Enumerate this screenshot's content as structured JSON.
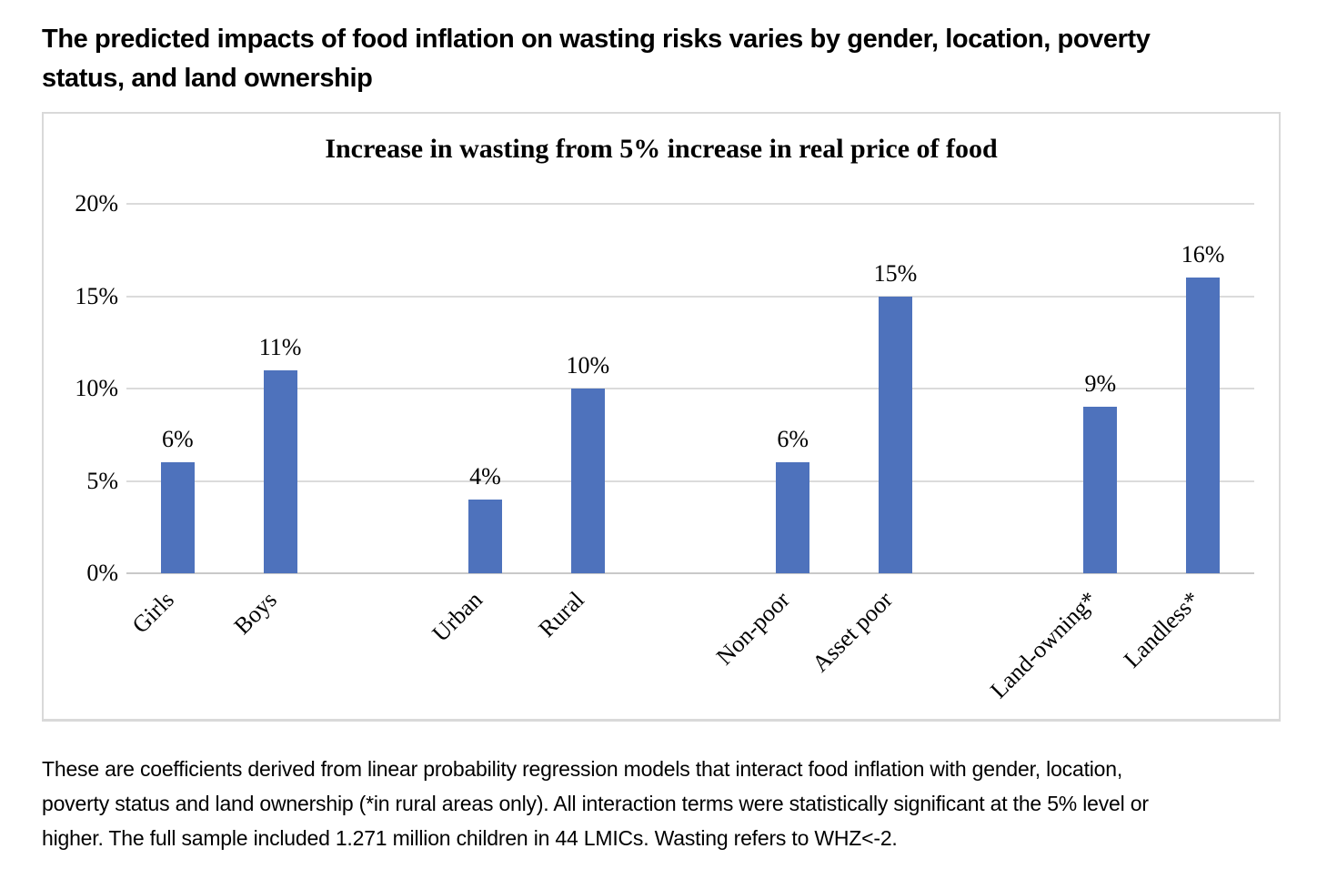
{
  "page": {
    "heading": {
      "line1": "The predicted impacts of food inflation on wasting risks varies by gender, location, poverty",
      "line2": "status, and land ownership"
    },
    "footnote": {
      "line1": "These are coefficients derived from linear probability regression models that interact food inflation with gender, location,",
      "line2": "poverty status and land ownership (*in rural areas only). All interaction terms were statistically significant at the 5% level or",
      "line3": "higher. The full sample included 1.271 million children in 44 LMICs. Wasting refers to WHZ<-2."
    }
  },
  "chart_data": {
    "type": "bar",
    "title": "Increase in wasting from 5% increase in real price of food",
    "categories": [
      "Girls",
      "Boys",
      "Urban",
      "Rural",
      "Non-poor",
      "Asset poor",
      "Land-owning*",
      "Landless*"
    ],
    "values": [
      6,
      11,
      4,
      10,
      6,
      15,
      9,
      16
    ],
    "bar_labels": [
      "6%",
      "11%",
      "4%",
      "10%",
      "6%",
      "15%",
      "9%",
      "16%"
    ],
    "category_groups": [
      [
        "Girls",
        "Boys"
      ],
      [
        "Urban",
        "Rural"
      ],
      [
        "Non-poor",
        "Asset poor"
      ],
      [
        "Land-owning*",
        "Landless*"
      ]
    ],
    "xlabel": "",
    "ylabel": "",
    "y_axis": {
      "min": 0,
      "max": 20,
      "tick_values": [
        20,
        15,
        10,
        5,
        0
      ],
      "tick_labels": [
        "20%",
        "15%",
        "10%",
        "5%",
        "0%"
      ]
    },
    "grid": "horizontal",
    "legend": "none",
    "x_label_rotation_deg": 45,
    "colors": {
      "bar": "#4E72BC",
      "gridline": "#DBDBDB",
      "axis_line": "#C9C9C9",
      "frame_border": "#D9D9D9",
      "text": "#000000"
    }
  }
}
